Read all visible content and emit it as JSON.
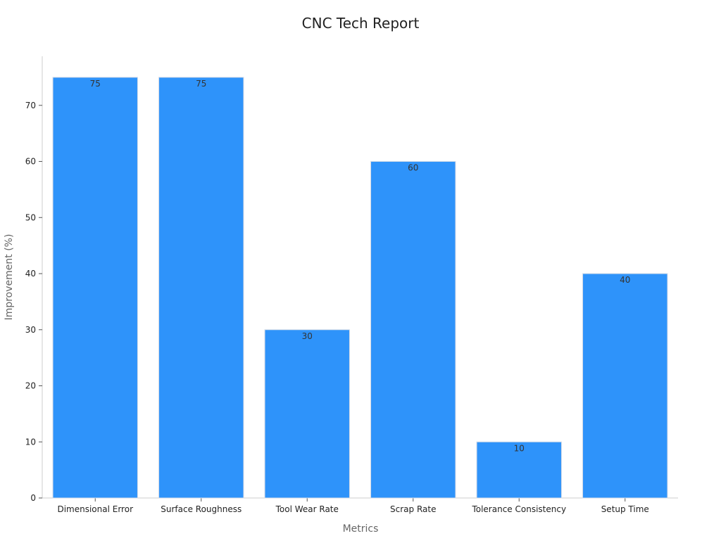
{
  "chart_data": {
    "type": "bar",
    "title": "CNC Tech Report",
    "xlabel": "Metrics",
    "ylabel": "Improvement (%)",
    "categories": [
      "Dimensional Error",
      "Surface Roughness",
      "Tool Wear Rate",
      "Scrap Rate",
      "Tolerance Consistency",
      "Setup Time"
    ],
    "values": [
      75,
      75,
      30,
      60,
      10,
      40
    ],
    "ylim": [
      0,
      78.75
    ],
    "yticks": [
      0,
      10,
      20,
      30,
      40,
      50,
      60,
      70
    ],
    "data_labels": true,
    "grid": false,
    "legend": "none",
    "colors": {
      "bar": "#2e93fa",
      "bar_edge": "#d4dbe6",
      "axis": "#cccccc",
      "tick_text": "#222222",
      "label_text": "#666666",
      "title_text": "#222222",
      "data_label_text": "#333333"
    }
  }
}
